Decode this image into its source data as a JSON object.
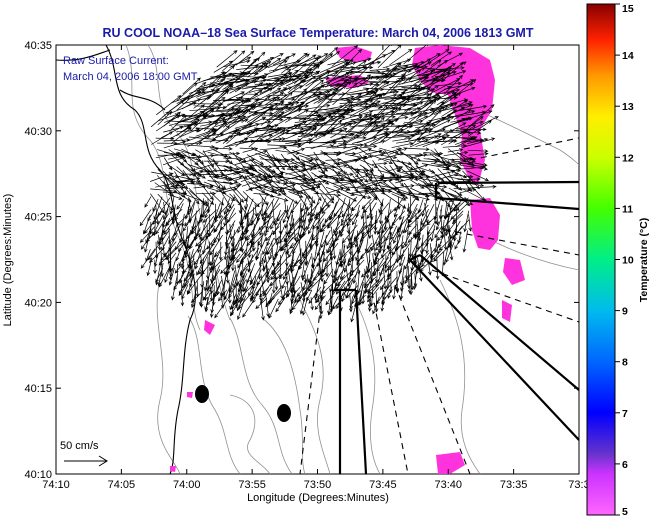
{
  "title": "RU COOL   NOAA–18  Sea Surface Temperature:  March 04, 2006 1813 GMT",
  "inset": {
    "line1": "Raw Surface Current:",
    "line2": "March 04, 2006 18:00 GMT"
  },
  "scale_label": "50 cm/s",
  "axes": {
    "xlabel": "Longitude (Degrees:Minutes)",
    "ylabel": "Latitude (Degrees:Minutes)",
    "xticks": [
      "74:10",
      "74:05",
      "74:00",
      "73:55",
      "73:50",
      "73:45",
      "73:40",
      "73:35",
      "73:3"
    ],
    "yticks": [
      "40:35",
      "40:30",
      "40:25",
      "40:20",
      "40:15",
      "40:10"
    ]
  },
  "colorbar": {
    "label": "Temperature (°C)",
    "ticks": [
      "15",
      "14",
      "13",
      "12",
      "11",
      "10",
      "9",
      "8",
      "7",
      "6",
      "5"
    ],
    "range": [
      5,
      15
    ]
  },
  "colors": {
    "title": "#1a1aa8",
    "sst_patch": "#ff33dd",
    "vectors": "#000000",
    "bathymetry": "#909090"
  }
}
